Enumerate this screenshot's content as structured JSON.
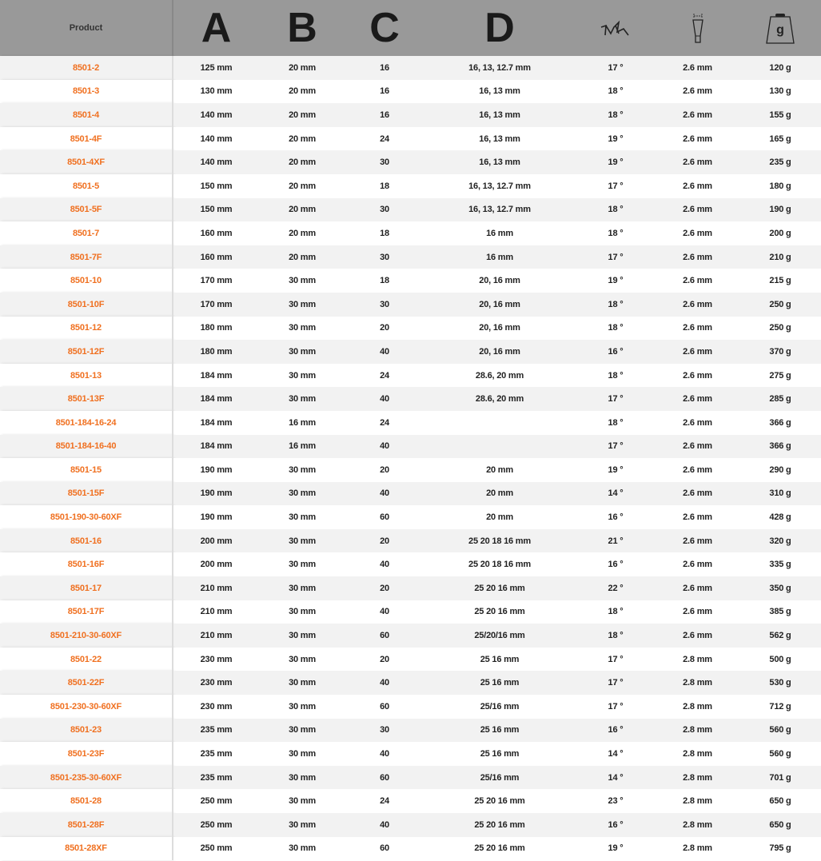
{
  "header": {
    "product": "Product",
    "a": "A",
    "b": "B",
    "c": "C",
    "d": "D",
    "angle_icon": "tooth-angle-icon",
    "kerf_icon": "kerf-width-icon",
    "weight_icon": "weight-icon",
    "weight_label": "g"
  },
  "accent": "#f07020",
  "rows": [
    [
      "8501-2",
      "125 mm",
      "20 mm",
      "16",
      "16, 13, 12.7 mm",
      "17 °",
      "2.6 mm",
      "120 g"
    ],
    [
      "8501-3",
      "130 mm",
      "20 mm",
      "16",
      "16, 13 mm",
      "18 °",
      "2.6 mm",
      "130 g"
    ],
    [
      "8501-4",
      "140 mm",
      "20 mm",
      "16",
      "16, 13 mm",
      "18 °",
      "2.6 mm",
      "155 g"
    ],
    [
      "8501-4F",
      "140 mm",
      "20 mm",
      "24",
      "16, 13 mm",
      "19 °",
      "2.6 mm",
      "165 g"
    ],
    [
      "8501-4XF",
      "140 mm",
      "20 mm",
      "30",
      "16, 13 mm",
      "19 °",
      "2.6 mm",
      "235 g"
    ],
    [
      "8501-5",
      "150 mm",
      "20 mm",
      "18",
      "16, 13, 12.7 mm",
      "17 °",
      "2.6 mm",
      "180 g"
    ],
    [
      "8501-5F",
      "150 mm",
      "20 mm",
      "30",
      "16, 13, 12.7 mm",
      "18 °",
      "2.6 mm",
      "190 g"
    ],
    [
      "8501-7",
      "160 mm",
      "20 mm",
      "18",
      "16 mm",
      "18 °",
      "2.6 mm",
      "200 g"
    ],
    [
      "8501-7F",
      "160 mm",
      "20 mm",
      "30",
      "16 mm",
      "17 °",
      "2.6 mm",
      "210 g"
    ],
    [
      "8501-10",
      "170 mm",
      "30 mm",
      "18",
      "20, 16 mm",
      "19 °",
      "2.6 mm",
      "215 g"
    ],
    [
      "8501-10F",
      "170 mm",
      "30 mm",
      "30",
      "20, 16 mm",
      "18 °",
      "2.6 mm",
      "250 g"
    ],
    [
      "8501-12",
      "180 mm",
      "30 mm",
      "20",
      "20, 16 mm",
      "18 °",
      "2.6 mm",
      "250 g"
    ],
    [
      "8501-12F",
      "180 mm",
      "30 mm",
      "40",
      "20, 16 mm",
      "16 °",
      "2.6 mm",
      "370 g"
    ],
    [
      "8501-13",
      "184 mm",
      "30 mm",
      "24",
      "28.6, 20 mm",
      "18 °",
      "2.6 mm",
      "275 g"
    ],
    [
      "8501-13F",
      "184 mm",
      "30 mm",
      "40",
      "28.6, 20 mm",
      "17 °",
      "2.6 mm",
      "285 g"
    ],
    [
      "8501-184-16-24",
      "184 mm",
      "16 mm",
      "24",
      "",
      "18 °",
      "2.6 mm",
      "366 g"
    ],
    [
      "8501-184-16-40",
      "184 mm",
      "16 mm",
      "40",
      "",
      "17 °",
      "2.6 mm",
      "366 g"
    ],
    [
      "8501-15",
      "190 mm",
      "30 mm",
      "20",
      "20 mm",
      "19 °",
      "2.6 mm",
      "290 g"
    ],
    [
      "8501-15F",
      "190 mm",
      "30 mm",
      "40",
      "20 mm",
      "14 °",
      "2.6 mm",
      "310 g"
    ],
    [
      "8501-190-30-60XF",
      "190 mm",
      "30 mm",
      "60",
      "20 mm",
      "16 °",
      "2.6 mm",
      "428 g"
    ],
    [
      "8501-16",
      "200 mm",
      "30 mm",
      "20",
      "25 20 18 16 mm",
      "21 °",
      "2.6 mm",
      "320 g"
    ],
    [
      "8501-16F",
      "200 mm",
      "30 mm",
      "40",
      "25 20 18 16 mm",
      "16 °",
      "2.6 mm",
      "335 g"
    ],
    [
      "8501-17",
      "210 mm",
      "30 mm",
      "20",
      "25 20 16 mm",
      "22 °",
      "2.6 mm",
      "350 g"
    ],
    [
      "8501-17F",
      "210 mm",
      "30 mm",
      "40",
      "25 20 16 mm",
      "18 °",
      "2.6 mm",
      "385 g"
    ],
    [
      "8501-210-30-60XF",
      "210 mm",
      "30 mm",
      "60",
      "25/20/16 mm",
      "18 °",
      "2.6 mm",
      "562 g"
    ],
    [
      "8501-22",
      "230 mm",
      "30 mm",
      "20",
      "25 16 mm",
      "17 °",
      "2.8 mm",
      "500 g"
    ],
    [
      "8501-22F",
      "230 mm",
      "30 mm",
      "40",
      "25 16 mm",
      "17 °",
      "2.8 mm",
      "530 g"
    ],
    [
      "8501-230-30-60XF",
      "230 mm",
      "30 mm",
      "60",
      "25/16 mm",
      "17 °",
      "2.8 mm",
      "712 g"
    ],
    [
      "8501-23",
      "235 mm",
      "30 mm",
      "30",
      "25 16 mm",
      "16 °",
      "2.8 mm",
      "560 g"
    ],
    [
      "8501-23F",
      "235 mm",
      "30 mm",
      "40",
      "25 16 mm",
      "14 °",
      "2.8 mm",
      "560 g"
    ],
    [
      "8501-235-30-60XF",
      "235 mm",
      "30 mm",
      "60",
      "25/16 mm",
      "14 °",
      "2.8 mm",
      "701 g"
    ],
    [
      "8501-28",
      "250 mm",
      "30 mm",
      "24",
      "25 20 16 mm",
      "23 °",
      "2.8 mm",
      "650 g"
    ],
    [
      "8501-28F",
      "250 mm",
      "30 mm",
      "40",
      "25 20 16 mm",
      "16 °",
      "2.8 mm",
      "650 g"
    ],
    [
      "8501-28XF",
      "250 mm",
      "30 mm",
      "60",
      "25 20 16 mm",
      "19 °",
      "2.8 mm",
      "795 g"
    ]
  ]
}
